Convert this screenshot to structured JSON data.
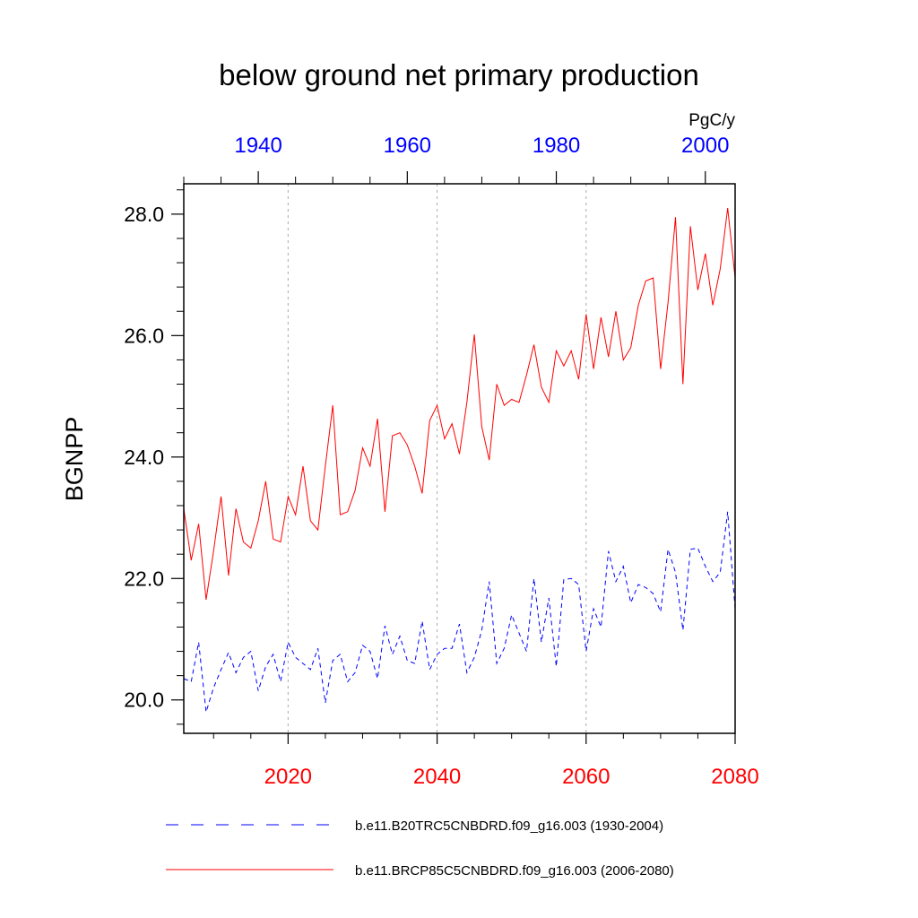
{
  "chart_data": {
    "type": "line",
    "title": "below ground net primary production",
    "units": "PgC/y",
    "ylabel": "BGNPP",
    "ylim": [
      19.45,
      28.5
    ],
    "yticks": [
      20.0,
      22.0,
      24.0,
      26.0,
      28.0
    ],
    "ytick_labels": [
      "20.0",
      "22.0",
      "24.0",
      "26.0",
      "28.0"
    ],
    "bottom_axis": {
      "range": [
        2006,
        2080
      ],
      "ticks": [
        2020,
        2040,
        2060,
        2080
      ],
      "tick_labels": [
        "2020",
        "2040",
        "2060",
        "2080"
      ],
      "color": "#ff0000"
    },
    "top_axis": {
      "range": [
        1930,
        2004
      ],
      "ticks": [
        1940,
        1960,
        1980,
        2000
      ],
      "tick_labels": [
        "1940",
        "1960",
        "1980",
        "2000"
      ],
      "color": "#0000ff"
    },
    "grid": "vertical dotted at bottom-axis major ticks",
    "series": [
      {
        "name": "b.e11.B20TRC5CNBDRD.f09_g16.003 (1930-2004)",
        "color": "#0000ff",
        "dash": "dashed",
        "axis": "top",
        "x_start": 1930,
        "values": [
          20.35,
          20.3,
          20.95,
          19.8,
          20.2,
          20.5,
          20.78,
          20.45,
          20.7,
          20.8,
          20.15,
          20.55,
          20.75,
          20.3,
          20.95,
          20.7,
          20.6,
          20.5,
          20.85,
          19.95,
          20.65,
          20.75,
          20.3,
          20.45,
          20.9,
          20.8,
          20.35,
          21.22,
          20.75,
          21.05,
          20.65,
          20.6,
          21.3,
          20.5,
          20.75,
          20.85,
          20.85,
          21.25,
          20.45,
          20.7,
          21.15,
          21.95,
          20.6,
          20.85,
          21.4,
          21.1,
          20.8,
          22.0,
          20.95,
          21.68,
          20.55,
          21.98,
          22.0,
          21.9,
          20.8,
          21.5,
          21.2,
          22.45,
          21.95,
          22.2,
          21.6,
          21.9,
          21.85,
          21.75,
          21.45,
          22.48,
          22.1,
          21.15,
          22.48,
          22.5,
          22.2,
          21.95,
          22.1,
          23.1,
          21.5
        ]
      },
      {
        "name": "b.e11.BRCP85C5CNBDRD.f09_g16.003 (2006-2080)",
        "color": "#ff0000",
        "dash": "solid",
        "axis": "bottom",
        "x_start": 2006,
        "values": [
          23.15,
          22.3,
          22.9,
          21.65,
          22.45,
          23.35,
          22.05,
          23.15,
          22.6,
          22.5,
          22.95,
          23.6,
          22.65,
          22.6,
          23.35,
          23.05,
          23.85,
          22.95,
          22.8,
          23.85,
          24.85,
          23.05,
          23.1,
          23.45,
          24.15,
          23.85,
          24.63,
          23.1,
          24.35,
          24.4,
          24.2,
          23.85,
          23.4,
          24.6,
          24.85,
          24.3,
          24.55,
          24.05,
          24.9,
          26.02,
          24.5,
          23.95,
          25.2,
          24.85,
          24.95,
          24.9,
          25.35,
          25.85,
          25.15,
          24.9,
          25.75,
          25.5,
          25.75,
          25.28,
          26.35,
          25.45,
          26.3,
          25.65,
          26.4,
          25.6,
          25.8,
          26.5,
          26.9,
          26.95,
          25.45,
          26.55,
          27.95,
          25.2,
          27.8,
          26.75,
          27.35,
          26.5,
          27.1,
          28.1,
          26.95
        ]
      }
    ],
    "legend": {
      "placement": "bottom",
      "entries": [
        "b.e11.B20TRC5CNBDRD.f09_g16.003 (1930-2004)",
        "b.e11.BRCP85C5CNBDRD.f09_g16.003 (2006-2080)"
      ]
    }
  }
}
